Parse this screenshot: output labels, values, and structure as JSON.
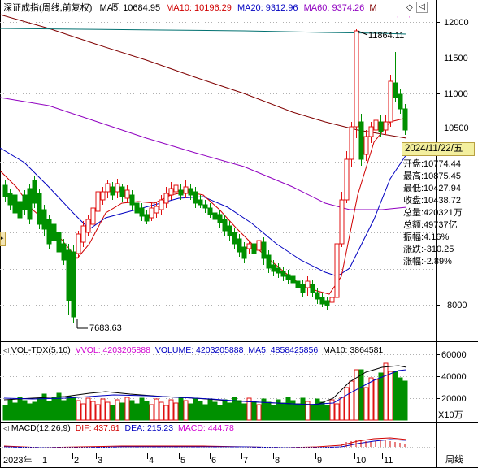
{
  "header": {
    "title": "深证成指(周线,前复权)",
    "ma5": "MA5: 10684.95",
    "ma10": "MA10: 10196.29",
    "ma20": "MA20: 9312.96",
    "ma60": "MA60: 9374.26",
    "trail": "M"
  },
  "price_axis": [
    "12000",
    "11500",
    "11000",
    "10500",
    "8000"
  ],
  "annotations": {
    "high": "11864.11",
    "low": "7683.63"
  },
  "info": {
    "date": "2024/11/22/五",
    "rows": [
      "开盘:10774.44",
      "最高:10875.45",
      "最低:10427.94",
      "收盘:10438.72",
      "总量:420321万",
      "总额:49737亿",
      "振幅:4.16%",
      "涨跌:-310.25",
      "涨幅:-2.89%"
    ]
  },
  "volume": {
    "title": "VOL-TDX(5,10)",
    "vvol": "VVOL: 4203205888",
    "vol": "VOLUME: 4203205888",
    "ma5": "MA5: 4858425856",
    "ma10": "MA10: 3864581",
    "axis": [
      "60000",
      "40000",
      "20000"
    ],
    "unit": "X10万"
  },
  "macd": {
    "title": "MACD(12,26,9)",
    "dif": "DIF: 437.61",
    "dea": "DEA: 215.23",
    "macd": "MACD: 444.78"
  },
  "x_axis": [
    "2023年",
    "1",
    "2",
    "3",
    "4",
    "5",
    "6",
    "7",
    "8",
    "9",
    "10",
    "11"
  ],
  "period_button": "周线",
  "colors": {
    "up": "#e01010",
    "down": "#009000",
    "ma5": "#000000",
    "ma10": "#d00000",
    "ma20": "#0000c0",
    "ma60": "#9000c0",
    "long": "#800000",
    "flat": "#007070"
  }
}
